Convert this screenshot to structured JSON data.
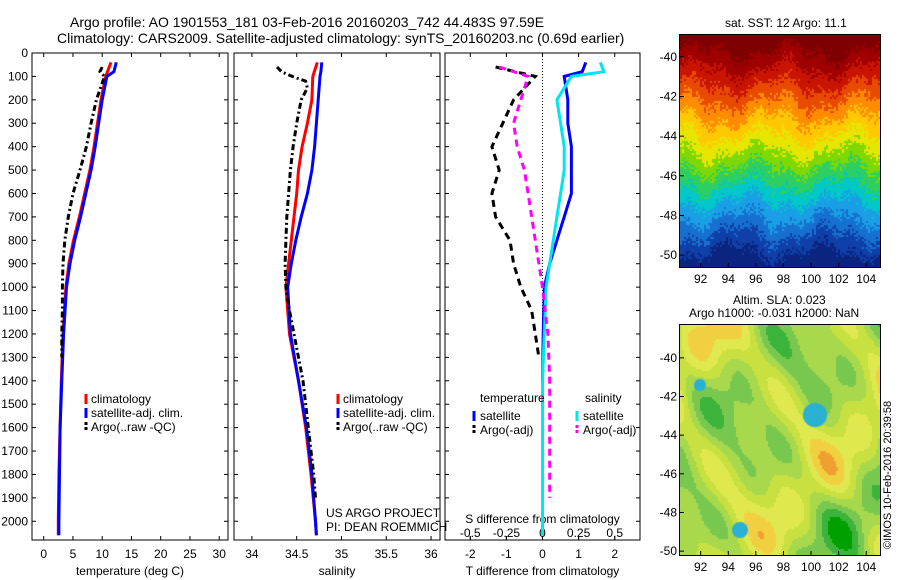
{
  "header": {
    "line1": "Argo profile: AO 1901553_181 03-Feb-2016 20160203_742 44.483S 97.59E",
    "line2": "Climatology: CARS2009. Satellite-adjusted climatology: synTS_20160203.nc (0.69d earlier)"
  },
  "colors": {
    "climatology": "#ff0000",
    "satellite": "#0000ff",
    "argo": "#000000",
    "satellite_diff": "#00e5ee",
    "argo_diff": "#ff00ff"
  },
  "depth_ticks": [
    "0",
    "100",
    "200",
    "300",
    "400",
    "500",
    "600",
    "700",
    "800",
    "900",
    "1000",
    "1100",
    "1200",
    "1300",
    "1400",
    "1500",
    "1600",
    "1700",
    "1800",
    "1900",
    "2000"
  ],
  "legend_labels": {
    "climatology": "climatology",
    "satellite": "satellite-adj. clim.",
    "argo": "Argo(..raw -QC)"
  },
  "diff_legend": {
    "temperature": "temperature",
    "salinity": "salinity",
    "satellite": "satellite",
    "argo": "Argo(-adj)"
  },
  "credits": {
    "line1": "US ARGO PROJECT",
    "line2": "PI: DEAN ROEMMICH"
  },
  "chart_data": [
    {
      "type": "line",
      "panel": "temperature",
      "xlabel": "temperature (deg C)",
      "xticks": [
        "0",
        "5",
        "10",
        "15",
        "20",
        "25",
        "30"
      ],
      "xlim": [
        -2,
        31.5
      ],
      "ylim": [
        2080,
        0
      ],
      "series": [
        {
          "name": "climatology",
          "depth": [
            40,
            100,
            200,
            300,
            400,
            500,
            600,
            700,
            800,
            900,
            1000,
            1200,
            1400,
            1600,
            1800,
            2000,
            2060
          ],
          "values": [
            11.5,
            10.6,
            9.8,
            9.2,
            8.6,
            7.9,
            7.0,
            6.1,
            5.1,
            4.3,
            3.8,
            3.3,
            3.0,
            2.8,
            2.6,
            2.5,
            2.5
          ]
        },
        {
          "name": "satellite-adj. clim.",
          "depth": [
            40,
            80,
            100,
            200,
            300,
            400,
            500,
            600,
            700,
            800,
            900,
            1000,
            1200,
            1400,
            1600,
            1800,
            2000,
            2060
          ],
          "values": [
            12.4,
            12.0,
            10.8,
            10.0,
            9.4,
            8.8,
            8.1,
            7.2,
            6.3,
            5.3,
            4.5,
            3.9,
            3.4,
            3.1,
            2.8,
            2.7,
            2.6,
            2.6
          ]
        },
        {
          "name": "Argo(..raw -QC)",
          "depth": [
            60,
            80,
            100,
            200,
            300,
            400,
            500,
            600,
            700,
            800,
            900,
            1000,
            1100,
            1200,
            1300
          ],
          "values": [
            10.0,
            9.6,
            10.4,
            9.0,
            8.1,
            7.3,
            6.2,
            5.0,
            4.2,
            3.6,
            3.3,
            3.2,
            3.2,
            3.1,
            3.1
          ]
        }
      ]
    },
    {
      "type": "line",
      "panel": "salinity",
      "xlabel": "salinity",
      "xticks": [
        "34",
        "34.5",
        "35",
        "35.5",
        "36"
      ],
      "xlim": [
        33.8,
        36.1
      ],
      "ylim": [
        2080,
        0
      ],
      "series": [
        {
          "name": "climatology",
          "depth": [
            40,
            100,
            200,
            300,
            400,
            500,
            600,
            700,
            800,
            900,
            1000,
            1200,
            1400,
            1600,
            1800,
            2000,
            2060
          ],
          "values": [
            34.73,
            34.68,
            34.67,
            34.62,
            34.56,
            34.52,
            34.5,
            34.47,
            34.44,
            34.41,
            34.38,
            34.42,
            34.52,
            34.6,
            34.66,
            34.71,
            34.72
          ]
        },
        {
          "name": "satellite-adj. clim.",
          "depth": [
            40,
            80,
            100,
            200,
            300,
            400,
            500,
            600,
            700,
            800,
            900,
            1000,
            1200,
            1400,
            1600,
            1800,
            2000,
            2060
          ],
          "values": [
            34.78,
            34.77,
            34.76,
            34.74,
            34.72,
            34.7,
            34.67,
            34.62,
            34.55,
            34.49,
            34.44,
            34.4,
            34.43,
            34.52,
            34.61,
            34.67,
            34.71,
            34.72
          ]
        },
        {
          "name": "Argo(..raw -QC)",
          "depth": [
            60,
            80,
            100,
            120,
            150,
            200,
            300,
            400,
            500,
            600,
            700,
            800,
            900,
            1000,
            1100,
            1200,
            1300,
            1400,
            1500,
            1600,
            1700,
            1800,
            1900
          ],
          "values": [
            34.28,
            34.33,
            34.45,
            34.6,
            34.62,
            34.55,
            34.5,
            34.46,
            34.43,
            34.41,
            34.39,
            34.38,
            34.37,
            34.38,
            34.42,
            34.47,
            34.52,
            34.57,
            34.6,
            34.63,
            34.66,
            34.69,
            34.71
          ]
        }
      ]
    },
    {
      "type": "line",
      "panel": "difference",
      "xlabel": "T difference from climatology",
      "xlabel2": "S difference from climatology",
      "xticks": [
        "-2",
        "-1",
        "0",
        "1",
        "2"
      ],
      "xticks2": [
        "-0.5",
        "-0.25",
        "0",
        "0.25",
        "0.5"
      ],
      "xlim": [
        -2.7,
        2.7
      ],
      "ylim": [
        2080,
        0
      ],
      "series": [
        {
          "name": "temperature satellite",
          "depth": [
            40,
            80,
            100,
            200,
            300,
            400,
            500,
            600,
            700,
            800,
            900,
            1000,
            1200,
            1400,
            1600,
            1800,
            2000,
            2060
          ],
          "values": [
            1.2,
            1.1,
            0.6,
            0.7,
            0.7,
            0.8,
            0.8,
            0.8,
            0.6,
            0.4,
            0.2,
            0.05,
            0.02,
            0.0,
            0.0,
            0.0,
            0.0,
            0.0
          ]
        },
        {
          "name": "temperature Argo(-adj)",
          "depth": [
            60,
            100,
            200,
            300,
            400,
            500,
            600,
            700,
            800,
            900,
            1000,
            1100,
            1200,
            1300
          ],
          "values": [
            -1.3,
            -0.2,
            -0.8,
            -1.1,
            -1.4,
            -1.2,
            -1.4,
            -1.3,
            -0.9,
            -0.8,
            -0.6,
            -0.3,
            -0.2,
            -0.1
          ]
        },
        {
          "name": "salinity satellite",
          "depth": [
            40,
            80,
            100,
            200,
            300,
            400,
            500,
            600,
            700,
            800,
            900,
            1000,
            1200,
            1400,
            1600,
            1800,
            2000,
            2060
          ],
          "values": [
            1.6,
            1.7,
            0.8,
            0.4,
            0.5,
            0.6,
            0.6,
            0.5,
            0.4,
            0.3,
            0.2,
            0.1,
            0.05,
            0.0,
            0.0,
            0.0,
            0.0,
            0.0
          ]
        },
        {
          "name": "salinity Argo(-adj)",
          "depth": [
            60,
            100,
            200,
            300,
            400,
            500,
            600,
            700,
            800,
            900,
            1000,
            1200,
            1400,
            1600,
            1800,
            1900
          ],
          "values": [
            -1.2,
            -0.4,
            -0.6,
            -0.8,
            -0.7,
            -0.5,
            -0.4,
            -0.3,
            -0.2,
            -0.1,
            0.0,
            0.15,
            0.2,
            0.2,
            0.2,
            0.2
          ]
        }
      ]
    }
  ],
  "sst_map": {
    "title": "sat. SST: 12 Argo: 11.1",
    "xticks": [
      "92",
      "94",
      "96",
      "98",
      "100",
      "102",
      "104"
    ],
    "yticks": [
      "-40",
      "-42",
      "-44",
      "-46",
      "-48",
      "-50"
    ]
  },
  "sla_map": {
    "title_line1": "Altim. SLA: 0.023",
    "title_line2": "Argo h1000: -0.031 h2000: NaN",
    "xticks": [
      "92",
      "94",
      "96",
      "98",
      "100",
      "102",
      "104"
    ],
    "yticks": [
      "-40",
      "-42",
      "-44",
      "-46",
      "-48",
      "-50"
    ]
  },
  "watermark": "©IMOS 10-Feb-2016 20:39:58"
}
